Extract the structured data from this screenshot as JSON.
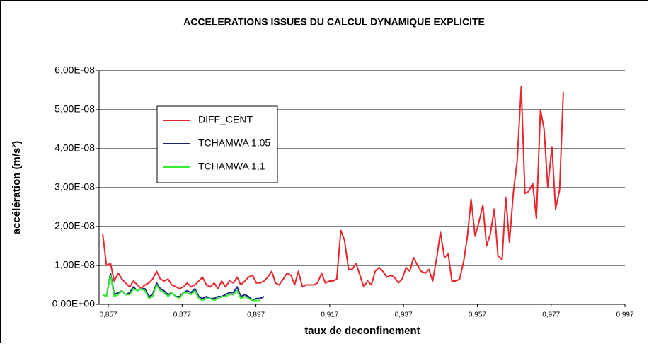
{
  "chart_data": {
    "type": "line",
    "title": "ACCELERATIONS ISSUES DU CALCUL DYNAMIQUE EXPLICITE",
    "xlabel": "taux de deconfinement",
    "ylabel": "accélération (m/s²)",
    "xlim": [
      0.8545,
      0.997
    ],
    "ylim": [
      0,
      6e-08
    ],
    "xticks": [
      {
        "value": 0.857,
        "label": "0,857"
      },
      {
        "value": 0.877,
        "label": "0,877"
      },
      {
        "value": 0.897,
        "label": "0,897"
      },
      {
        "value": 0.917,
        "label": "0,917"
      },
      {
        "value": 0.937,
        "label": "0,937"
      },
      {
        "value": 0.957,
        "label": "0,957"
      },
      {
        "value": 0.977,
        "label": "0,977"
      },
      {
        "value": 0.997,
        "label": "0,997"
      }
    ],
    "yticks": [
      {
        "value": 0,
        "label": "0,00E+00"
      },
      {
        "value": 1e-08,
        "label": "1,00E-08"
      },
      {
        "value": 2e-08,
        "label": "2,00E-08"
      },
      {
        "value": 3e-08,
        "label": "3,00E-08"
      },
      {
        "value": 4e-08,
        "label": "4,00E-08"
      },
      {
        "value": 5e-08,
        "label": "5,00E-08"
      },
      {
        "value": 6e-08,
        "label": "6,00E-08"
      }
    ],
    "grid": true,
    "x": [
      0.8555,
      0.8565,
      0.8576,
      0.8586,
      0.8597,
      0.8607,
      0.8617,
      0.8628,
      0.8638,
      0.8649,
      0.8659,
      0.8669,
      0.868,
      0.869,
      0.8701,
      0.8711,
      0.8721,
      0.8732,
      0.8742,
      0.8753,
      0.8763,
      0.8773,
      0.8784,
      0.8794,
      0.8805,
      0.8815,
      0.8825,
      0.8836,
      0.8846,
      0.8857,
      0.8867,
      0.8877,
      0.8888,
      0.8898,
      0.8909,
      0.8919,
      0.8929,
      0.894,
      0.895,
      0.8961,
      0.8971,
      0.8981,
      0.8992,
      0.9002,
      0.9013,
      0.9023,
      0.9033,
      0.9044,
      0.9054,
      0.9065,
      0.9075,
      0.9085,
      0.9096,
      0.9106,
      0.9117,
      0.9127,
      0.9137,
      0.9148,
      0.9158,
      0.9169,
      0.9179,
      0.9189,
      0.92,
      0.921,
      0.9221,
      0.9231,
      0.9241,
      0.9252,
      0.9262,
      0.9273,
      0.9283,
      0.9293,
      0.9304,
      0.9314,
      0.9325,
      0.9335,
      0.9345,
      0.9356,
      0.9366,
      0.9377,
      0.9387,
      0.9397,
      0.9408,
      0.9418,
      0.9429,
      0.9439,
      0.9449,
      0.946,
      0.947,
      0.9481,
      0.9491,
      0.9501,
      0.9512,
      0.9522,
      0.9533,
      0.9543,
      0.9553,
      0.9564,
      0.9574,
      0.9585,
      0.9595,
      0.9605,
      0.9616,
      0.9626,
      0.9637,
      0.9647,
      0.9657,
      0.9668,
      0.9678,
      0.9689,
      0.9699,
      0.9709,
      0.972,
      0.973,
      0.9741,
      0.9751,
      0.9761,
      0.9772,
      0.9782,
      0.9793,
      0.9803
    ],
    "series": [
      {
        "name": "DIFF_CENT",
        "color": "#e8262b",
        "values": [
          1.8e-08,
          1e-08,
          1.05e-08,
          6e-09,
          8e-09,
          6.5e-09,
          5.5e-09,
          4.5e-09,
          6e-09,
          5e-09,
          4e-09,
          5e-09,
          5.5e-09,
          6.5e-09,
          8.5e-09,
          6.5e-09,
          6e-09,
          6.5e-09,
          5e-09,
          4.5e-09,
          4e-09,
          4.5e-09,
          5.5e-09,
          4.5e-09,
          5e-09,
          6e-09,
          7e-09,
          5e-09,
          4.5e-09,
          5.5e-09,
          4e-09,
          6e-09,
          4.5e-09,
          6e-09,
          5.5e-09,
          7e-09,
          5e-09,
          6e-09,
          7e-09,
          7.5e-09,
          5.5e-09,
          5.5e-09,
          6e-09,
          7e-09,
          8.5e-09,
          5.5e-09,
          5e-09,
          6.5e-09,
          8e-09,
          7.5e-09,
          5e-09,
          8.5e-09,
          4.5e-09,
          5e-09,
          5e-09,
          5e-09,
          5.5e-09,
          8e-09,
          5.5e-09,
          6e-09,
          6e-09,
          6.5e-09,
          1.9e-08,
          1.65e-08,
          9e-09,
          9e-09,
          1.05e-08,
          7.5e-09,
          4.5e-09,
          6e-09,
          5e-09,
          8.5e-09,
          9.5e-09,
          8.5e-09,
          7e-09,
          7.5e-09,
          7e-09,
          5.5e-09,
          6.5e-09,
          9.5e-09,
          8.5e-09,
          1.2e-08,
          1e-08,
          8.5e-09,
          8e-09,
          9e-09,
          6e-09,
          1.2e-08,
          1.85e-08,
          1.2e-08,
          1.3e-08,
          6e-09,
          6e-09,
          6.5e-09,
          1.1e-08,
          1.75e-08,
          2.7e-08,
          1.75e-08,
          2.1e-08,
          2.55e-08,
          1.5e-08,
          1.8e-08,
          2.45e-08,
          1.25e-08,
          1.15e-08,
          2.75e-08,
          1.6e-08,
          2.9e-08,
          3.7e-08,
          5.6e-08,
          2.85e-08,
          2.9e-08,
          3.1e-08,
          2.2e-08,
          5e-08,
          4.5e-08,
          3e-08,
          4.05e-08,
          2.45e-08,
          2.95e-08,
          5.45e-08
        ]
      },
      {
        "name": "TCHAMWA 1,05",
        "color": "#1a237e",
        "values": [
          2.5e-09,
          2e-09,
          8e-09,
          2.5e-09,
          3e-09,
          3.5e-09,
          2.5e-09,
          3e-09,
          4.5e-09,
          3.5e-09,
          4e-09,
          4e-09,
          2e-09,
          2.5e-09,
          5.5e-09,
          4e-09,
          3.5e-09,
          2.5e-09,
          3e-09,
          2e-09,
          2e-09,
          3e-09,
          3.5e-09,
          3e-09,
          4e-09,
          2e-09,
          1.5e-09,
          2e-09,
          1.5e-09,
          1.5e-09,
          2e-09,
          2e-09,
          2.5e-09,
          3e-09,
          3e-09,
          4.5e-09,
          2e-09,
          2.5e-09,
          2e-09,
          1e-09,
          1.5e-09,
          1.5e-09,
          2e-09,
          null,
          null,
          null,
          null,
          null,
          null,
          null,
          null,
          null,
          null,
          null,
          null,
          null,
          null,
          null,
          null,
          null,
          null,
          null,
          null,
          null,
          null,
          null,
          null,
          null,
          null,
          null,
          null,
          null,
          null,
          null,
          null,
          null,
          null,
          null,
          null,
          null,
          null,
          null,
          null,
          null,
          null,
          null,
          null,
          null,
          null,
          null,
          null,
          null,
          null,
          null,
          null,
          null,
          null,
          null,
          null,
          null,
          null,
          null,
          null,
          null,
          null,
          null,
          null,
          null,
          null,
          null,
          null,
          null,
          null,
          null,
          null,
          null,
          null,
          null,
          null,
          null,
          null
        ]
      },
      {
        "name": "TCHAMWA 1,1",
        "color": "#33ee33",
        "values": [
          2.5e-09,
          2e-09,
          7.5e-09,
          2e-09,
          2.5e-09,
          3.5e-09,
          2.5e-09,
          2.5e-09,
          4e-09,
          3.5e-09,
          4e-09,
          3.5e-09,
          1.5e-09,
          2e-09,
          5e-09,
          3.5e-09,
          3e-09,
          2e-09,
          3e-09,
          2e-09,
          1.5e-09,
          3e-09,
          3e-09,
          2.5e-09,
          3.5e-09,
          1.5e-09,
          1e-09,
          1.5e-09,
          1.5e-09,
          1e-09,
          1.5e-09,
          2e-09,
          2e-09,
          2.5e-09,
          2.5e-09,
          3.5e-09,
          1.5e-09,
          2e-09,
          1.5e-09,
          1e-09,
          1e-09,
          1e-09,
          null,
          null,
          null,
          null,
          null,
          null,
          null,
          null,
          null,
          null,
          null,
          null,
          null,
          null,
          null,
          null,
          null,
          null,
          null,
          null,
          null,
          null,
          null,
          null,
          null,
          null,
          null,
          null,
          null,
          null,
          null,
          null,
          null,
          null,
          null,
          null,
          null,
          null,
          null,
          null,
          null,
          null,
          null,
          null,
          null,
          null,
          null,
          null,
          null,
          null,
          null,
          null,
          null,
          null,
          null,
          null,
          null,
          null,
          null,
          null,
          null,
          null,
          null,
          null,
          null,
          null,
          null,
          null,
          null,
          null,
          null,
          null,
          null,
          null,
          null,
          null,
          null,
          null,
          null
        ]
      }
    ]
  }
}
